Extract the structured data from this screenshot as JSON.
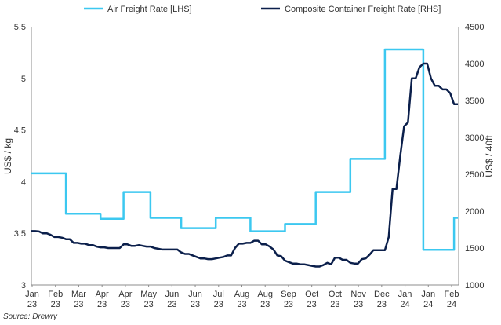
{
  "chart_data": {
    "type": "line",
    "title": "",
    "source": "Source: Drewry",
    "ylabel_left": "US$ / kg",
    "ylabel_right": "US$ / 40ft",
    "ylim_left": [
      3,
      5.5
    ],
    "ylim_right": [
      1000,
      4500
    ],
    "yticks_left": [
      3,
      3.5,
      4,
      4.5,
      5,
      5.5
    ],
    "ytick_labels_left": [
      "3",
      "3.5",
      "4",
      "4.5",
      "5",
      "5.5"
    ],
    "yticks_right": [
      1000,
      1500,
      2000,
      2500,
      3000,
      3500,
      4000,
      4500
    ],
    "ytick_labels_right": [
      "1000",
      "1500",
      "2000",
      "2500",
      "3000",
      "3500",
      "4000",
      "4500"
    ],
    "xtick_labels": [
      [
        "Jan",
        "23"
      ],
      [
        "Feb",
        "23"
      ],
      [
        "Mar",
        "23"
      ],
      [
        "Apr",
        "23"
      ],
      [
        "Apr",
        "23"
      ],
      [
        "May",
        "23"
      ],
      [
        "Jun",
        "23"
      ],
      [
        "Jun",
        "23"
      ],
      [
        "Jul",
        "23"
      ],
      [
        "Aug",
        "23"
      ],
      [
        "Aug",
        "23"
      ],
      [
        "Sep",
        "23"
      ],
      [
        "Oct",
        "23"
      ],
      [
        "Oct",
        "23"
      ],
      [
        "Nov",
        "23"
      ],
      [
        "Dec",
        "23"
      ],
      [
        "Jan",
        "24"
      ],
      [
        "Jan",
        "24"
      ],
      [
        "Feb",
        "24"
      ]
    ],
    "grid": false,
    "legend_position": "top",
    "colors": {
      "air": "#3cc8f0",
      "container": "#0b1f4b"
    },
    "series": [
      {
        "name": "Air Freight Rate [LHS]",
        "axis": "left",
        "step": true,
        "values": [
          4.08,
          4.08,
          4.08,
          4.08,
          4.08,
          4.08,
          4.08,
          4.08,
          4.08,
          3.69,
          3.69,
          3.69,
          3.69,
          3.69,
          3.69,
          3.69,
          3.69,
          3.69,
          3.64,
          3.64,
          3.64,
          3.64,
          3.64,
          3.64,
          3.9,
          3.9,
          3.9,
          3.9,
          3.9,
          3.9,
          3.9,
          3.65,
          3.65,
          3.65,
          3.65,
          3.65,
          3.65,
          3.65,
          3.65,
          3.55,
          3.55,
          3.55,
          3.55,
          3.55,
          3.55,
          3.55,
          3.55,
          3.55,
          3.65,
          3.65,
          3.65,
          3.65,
          3.65,
          3.65,
          3.65,
          3.65,
          3.65,
          3.52,
          3.52,
          3.52,
          3.52,
          3.52,
          3.52,
          3.52,
          3.52,
          3.52,
          3.59,
          3.59,
          3.59,
          3.59,
          3.59,
          3.59,
          3.59,
          3.59,
          3.9,
          3.9,
          3.9,
          3.9,
          3.9,
          3.9,
          3.9,
          3.9,
          3.9,
          4.22,
          4.22,
          4.22,
          4.22,
          4.22,
          4.22,
          4.22,
          4.22,
          4.22,
          5.28,
          5.28,
          5.28,
          5.28,
          5.28,
          5.28,
          5.28,
          5.28,
          5.28,
          5.28,
          3.34,
          3.34,
          3.34,
          3.34,
          3.34,
          3.34,
          3.34,
          3.34,
          3.65,
          3.65
        ]
      },
      {
        "name": "Composite Container Freight Rate [RHS]",
        "axis": "right",
        "step": false,
        "values": [
          1730,
          1730,
          1725,
          1700,
          1700,
          1680,
          1650,
          1650,
          1640,
          1620,
          1620,
          1570,
          1570,
          1560,
          1560,
          1540,
          1540,
          1520,
          1510,
          1510,
          1500,
          1500,
          1500,
          1500,
          1550,
          1550,
          1530,
          1530,
          1540,
          1530,
          1520,
          1520,
          1500,
          1490,
          1480,
          1480,
          1480,
          1480,
          1480,
          1440,
          1420,
          1420,
          1400,
          1380,
          1360,
          1360,
          1350,
          1350,
          1360,
          1370,
          1380,
          1400,
          1400,
          1500,
          1560,
          1560,
          1570,
          1570,
          1600,
          1600,
          1550,
          1550,
          1520,
          1480,
          1400,
          1390,
          1330,
          1310,
          1290,
          1290,
          1280,
          1280,
          1270,
          1260,
          1250,
          1250,
          1270,
          1300,
          1280,
          1370,
          1370,
          1340,
          1340,
          1300,
          1290,
          1290,
          1350,
          1360,
          1410,
          1470,
          1470,
          1470,
          1470,
          1650,
          2300,
          2300,
          2750,
          3150,
          3200,
          3800,
          3800,
          3950,
          4000,
          4000,
          3800,
          3700,
          3700,
          3650,
          3650,
          3600,
          3450,
          3450
        ]
      }
    ]
  }
}
